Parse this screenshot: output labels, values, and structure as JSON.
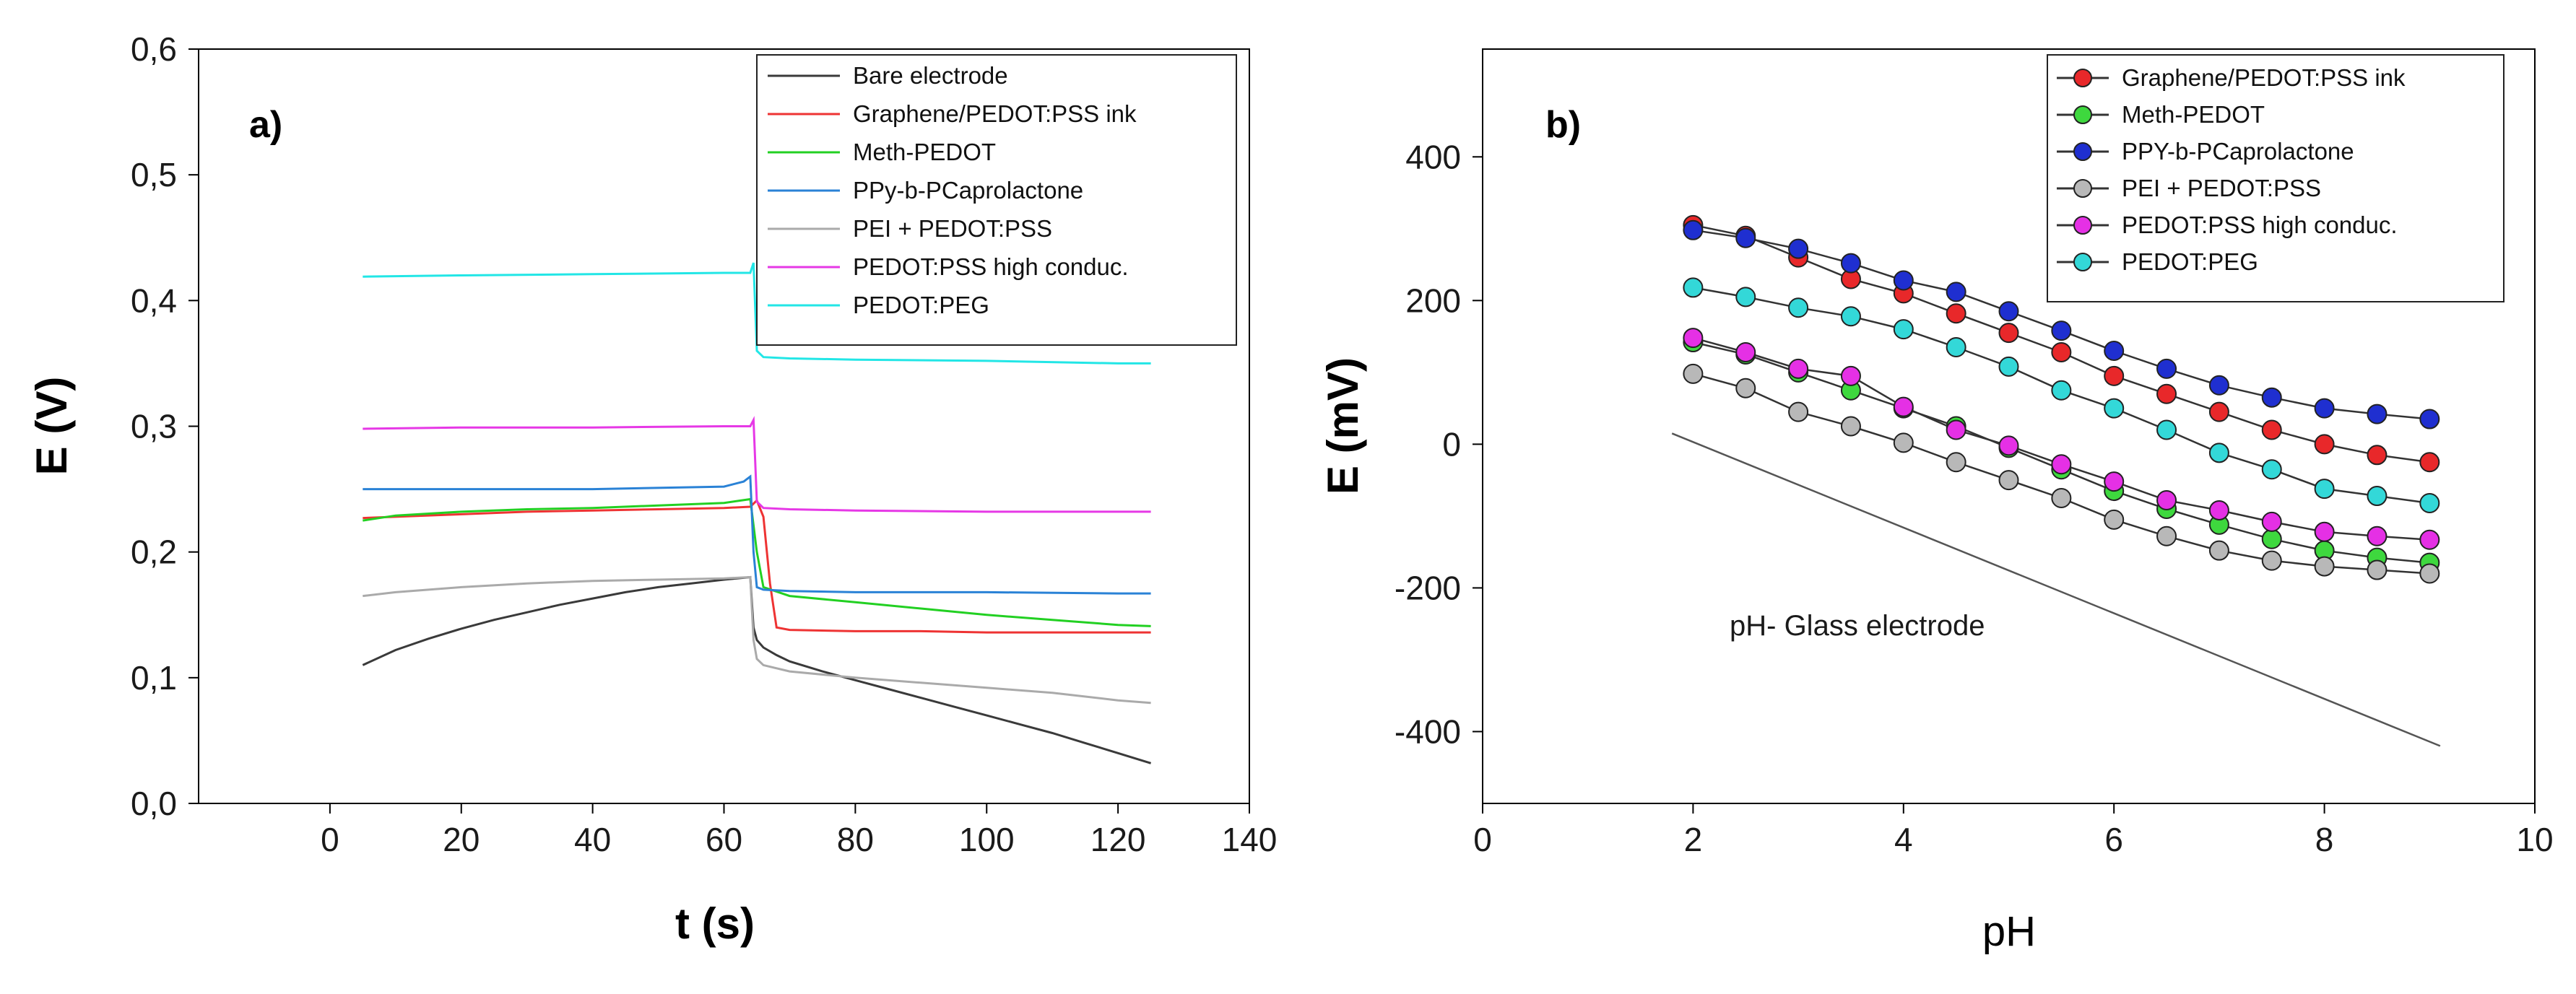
{
  "chart_data": [
    {
      "type": "line",
      "panel_label": "a)",
      "xlabel": "t (s)",
      "ylabel": "E (V)",
      "xlim": [
        -20,
        140
      ],
      "ylim": [
        0,
        0.6
      ],
      "xticks": [
        0,
        20,
        40,
        60,
        80,
        100,
        120,
        140
      ],
      "xtick_labels": [
        "0",
        "20",
        "40",
        "60",
        "80",
        "100",
        "120",
        "140"
      ],
      "yticks": [
        0,
        0.1,
        0.2,
        0.3,
        0.4,
        0.5,
        0.6
      ],
      "ytick_labels": [
        "0,0",
        "0,1",
        "0,2",
        "0,3",
        "0,4",
        "0,5",
        "0,6"
      ],
      "legend_position": "top-right",
      "grid": false,
      "series": [
        {
          "name": "Bare electrode",
          "color": "#3a3a3a",
          "x": [
            5,
            10,
            15,
            20,
            25,
            30,
            35,
            40,
            45,
            50,
            55,
            60,
            62,
            64,
            64.5,
            65,
            66,
            68,
            70,
            75,
            80,
            85,
            90,
            95,
            100,
            105,
            110,
            115,
            120,
            125
          ],
          "y": [
            0.11,
            0.122,
            0.131,
            0.139,
            0.146,
            0.152,
            0.158,
            0.163,
            0.168,
            0.172,
            0.175,
            0.178,
            0.179,
            0.18,
            0.14,
            0.13,
            0.124,
            0.118,
            0.113,
            0.105,
            0.098,
            0.091,
            0.084,
            0.077,
            0.07,
            0.063,
            0.056,
            0.048,
            0.04,
            0.032
          ]
        },
        {
          "name": "Graphene/PEDOT:PSS ink",
          "color": "#ee3333",
          "x": [
            5,
            10,
            20,
            30,
            40,
            50,
            60,
            64,
            65,
            66,
            67,
            68,
            70,
            80,
            90,
            100,
            110,
            120,
            125
          ],
          "y": [
            0.227,
            0.228,
            0.23,
            0.232,
            0.233,
            0.234,
            0.235,
            0.236,
            0.241,
            0.228,
            0.175,
            0.14,
            0.138,
            0.137,
            0.137,
            0.136,
            0.136,
            0.136,
            0.136
          ]
        },
        {
          "name": "Meth-PEDOT",
          "color": "#22d022",
          "x": [
            5,
            10,
            20,
            30,
            40,
            50,
            60,
            64,
            65,
            66,
            70,
            80,
            90,
            100,
            110,
            120,
            125
          ],
          "y": [
            0.225,
            0.229,
            0.232,
            0.234,
            0.235,
            0.237,
            0.239,
            0.242,
            0.2,
            0.172,
            0.165,
            0.16,
            0.155,
            0.15,
            0.146,
            0.142,
            0.141
          ]
        },
        {
          "name": "PPy-b-PCaprolactone",
          "color": "#2a82d6",
          "x": [
            5,
            20,
            40,
            60,
            63,
            64,
            64.5,
            65,
            66,
            70,
            80,
            100,
            120,
            125
          ],
          "y": [
            0.25,
            0.25,
            0.25,
            0.252,
            0.256,
            0.26,
            0.2,
            0.172,
            0.17,
            0.169,
            0.168,
            0.168,
            0.167,
            0.167
          ]
        },
        {
          "name": "PEI + PEDOT:PSS",
          "color": "#aaaaaa",
          "x": [
            5,
            10,
            20,
            30,
            40,
            50,
            60,
            64,
            64.5,
            65,
            66,
            70,
            80,
            90,
            100,
            110,
            120,
            125
          ],
          "y": [
            0.165,
            0.168,
            0.172,
            0.175,
            0.177,
            0.178,
            0.179,
            0.18,
            0.13,
            0.115,
            0.11,
            0.105,
            0.1,
            0.096,
            0.092,
            0.088,
            0.082,
            0.08
          ]
        },
        {
          "name": "PEDOT:PSS high conduc.",
          "color": "#e638e6",
          "x": [
            5,
            20,
            40,
            60,
            64,
            64.5,
            65,
            66,
            70,
            80,
            100,
            120,
            125
          ],
          "y": [
            0.298,
            0.299,
            0.299,
            0.3,
            0.3,
            0.305,
            0.24,
            0.235,
            0.234,
            0.233,
            0.232,
            0.232,
            0.232
          ]
        },
        {
          "name": "PEDOT:PEG",
          "color": "#22e6e6",
          "x": [
            5,
            20,
            40,
            60,
            64,
            64.5,
            65,
            66,
            70,
            80,
            100,
            120,
            125
          ],
          "y": [
            0.419,
            0.42,
            0.421,
            0.422,
            0.422,
            0.43,
            0.36,
            0.355,
            0.354,
            0.353,
            0.352,
            0.35,
            0.35
          ]
        }
      ]
    },
    {
      "type": "line",
      "panel_label": "b)",
      "xlabel": "pH",
      "ylabel": "E (mV)",
      "xlim": [
        0,
        10
      ],
      "ylim": [
        -500,
        550
      ],
      "xticks": [
        0,
        2,
        4,
        6,
        8,
        10
      ],
      "xtick_labels": [
        "0",
        "2",
        "4",
        "6",
        "8",
        "10"
      ],
      "yticks": [
        -400,
        -200,
        0,
        200,
        400
      ],
      "ytick_labels": [
        "-400",
        "-200",
        "0",
        "200",
        "400"
      ],
      "legend_position": "top-right",
      "grid": false,
      "annotation": "pH- Glass electrode",
      "reference_line": {
        "name": "pH- Glass electrode",
        "x": [
          1.8,
          9.1
        ],
        "y": [
          15,
          -420
        ],
        "color": "#555555"
      },
      "series": [
        {
          "name": "Graphene/PEDOT:PSS ink",
          "color": "#e8282a",
          "x": [
            2.0,
            2.5,
            3.0,
            3.5,
            4.0,
            4.5,
            5.0,
            5.5,
            6.0,
            6.5,
            7.0,
            7.5,
            8.0,
            8.5,
            9.0
          ],
          "y": [
            305,
            290,
            260,
            230,
            210,
            182,
            155,
            128,
            95,
            70,
            45,
            20,
            0,
            -15,
            -25
          ]
        },
        {
          "name": "Meth-PEDOT",
          "color": "#3ed83e",
          "x": [
            2.0,
            2.5,
            3.0,
            3.5,
            4.0,
            4.5,
            5.0,
            5.5,
            6.0,
            6.5,
            7.0,
            7.5,
            8.0,
            8.5,
            9.0
          ],
          "y": [
            142,
            125,
            100,
            75,
            50,
            25,
            -5,
            -35,
            -65,
            -90,
            -112,
            -132,
            -148,
            -158,
            -165
          ]
        },
        {
          "name": "PPY-b-PCaprolactone",
          "color": "#1f2fd0",
          "x": [
            2.0,
            2.5,
            3.0,
            3.5,
            4.0,
            4.5,
            5.0,
            5.5,
            6.0,
            6.5,
            7.0,
            7.5,
            8.0,
            8.5,
            9.0
          ],
          "y": [
            298,
            287,
            272,
            252,
            228,
            212,
            185,
            158,
            130,
            105,
            82,
            65,
            50,
            42,
            35
          ]
        },
        {
          "name": "PEI + PEDOT:PSS",
          "color": "#b8b8b8",
          "x": [
            2.0,
            2.5,
            3.0,
            3.5,
            4.0,
            4.5,
            5.0,
            5.5,
            6.0,
            6.5,
            7.0,
            7.5,
            8.0,
            8.5,
            9.0
          ],
          "y": [
            98,
            78,
            45,
            25,
            2,
            -25,
            -50,
            -75,
            -105,
            -128,
            -148,
            -162,
            -170,
            -175,
            -180
          ]
        },
        {
          "name": "PEDOT:PSS high conduc.",
          "color": "#e530e5",
          "x": [
            2.0,
            2.5,
            3.0,
            3.5,
            4.0,
            4.5,
            5.0,
            5.5,
            6.0,
            6.5,
            7.0,
            7.5,
            8.0,
            8.5,
            9.0
          ],
          "y": [
            148,
            128,
            105,
            95,
            52,
            20,
            -2,
            -28,
            -52,
            -78,
            -92,
            -108,
            -122,
            -128,
            -133
          ]
        },
        {
          "name": "PEDOT:PEG",
          "color": "#33d8d8",
          "x": [
            2.0,
            2.5,
            3.0,
            3.5,
            4.0,
            4.5,
            5.0,
            5.5,
            6.0,
            6.5,
            7.0,
            7.5,
            8.0,
            8.5,
            9.0
          ],
          "y": [
            218,
            205,
            190,
            178,
            160,
            135,
            108,
            75,
            50,
            20,
            -12,
            -35,
            -62,
            -72,
            -82
          ]
        }
      ]
    }
  ]
}
